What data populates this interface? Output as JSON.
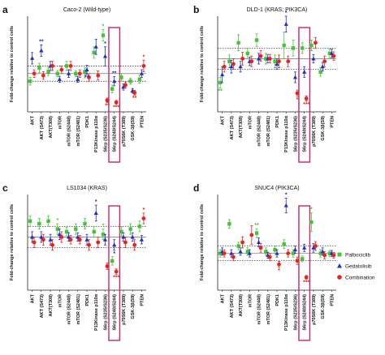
{
  "figure": {
    "ylabel": "Fold-change relative to control cells",
    "legend": [
      {
        "name": "Palbociclib",
        "color": "#49c13d",
        "shape": "square"
      },
      {
        "name": "Gedatolisib",
        "color": "#1f2fbf",
        "shape": "triangle"
      },
      {
        "name": "Combination",
        "color": "#e3241f",
        "shape": "circle"
      }
    ],
    "highlight_color": "#c8246c",
    "dotted_lines": [
      0.8,
      1.2
    ],
    "mid_line": 1.0
  },
  "chart_data": [
    {
      "type": "scatter",
      "panel_letter": "a",
      "title": "Caco-2 (Wild-type)",
      "ylabel": "Fold-change relative to control cells",
      "ylim": [
        0.0,
        2.5
      ],
      "categories": [
        "AKT",
        "AKT (S473)",
        "AKT(T308)",
        "mTOR",
        "mTOR (S2448)",
        "mTOR (S2481)",
        "PDK1",
        "P13Kinase p110α",
        "S6rp (S235/S236)",
        "S6rp (S240/S244)",
        "p70S6K (T389)",
        "GSK-3β(S9)",
        "PTEN"
      ],
      "highlight_index": 9,
      "series": [
        {
          "name": "Palbociclib",
          "values": [
            0.8,
            1.15,
            1.05,
            1.0,
            1.2,
            1.0,
            1.05,
            1.55,
            2.0,
            0.6,
            0.9,
            0.8,
            0.85
          ],
          "errors": [
            0.1,
            0.12,
            0.1,
            0.08,
            0.12,
            0.08,
            0.1,
            0.15,
            0.15,
            0.1,
            0.1,
            0.08,
            0.1
          ]
        },
        {
          "name": "Gedatolisib",
          "values": [
            1.4,
            1.6,
            1.2,
            0.85,
            1.0,
            0.85,
            1.1,
            1.7,
            1.45,
            0.8,
            0.65,
            0.55,
            1.0
          ],
          "errors": [
            0.15,
            0.15,
            0.12,
            0.08,
            0.1,
            0.08,
            0.12,
            0.2,
            0.25,
            0.12,
            0.08,
            0.06,
            0.1
          ]
        },
        {
          "name": "Combination",
          "values": [
            1.0,
            0.95,
            1.2,
            1.1,
            1.2,
            1.0,
            0.9,
            0.95,
            0.3,
            0.25,
            0.7,
            0.5,
            1.2
          ],
          "errors": [
            0.1,
            0.1,
            0.12,
            0.1,
            0.12,
            0.1,
            0.1,
            0.12,
            0.06,
            0.05,
            0.08,
            0.06,
            0.15
          ]
        }
      ],
      "annotations": [
        {
          "label": "**",
          "category_index": 1,
          "series": "Gedatolisib",
          "side": "above"
        },
        {
          "label": "*",
          "category_index": 6,
          "series": "Palbociclib",
          "side": "below"
        },
        {
          "label": "**",
          "category_index": 6,
          "series": "Gedatolisib",
          "side": "below"
        },
        {
          "label": "*",
          "category_index": 8,
          "series": "Palbociclib",
          "side": "above"
        },
        {
          "label": "*",
          "category_index": 8,
          "series": "Gedatolisib",
          "side": "above"
        },
        {
          "label": "**",
          "category_index": 8,
          "series": "Combination",
          "side": "below"
        },
        {
          "label": "**",
          "category_index": 9,
          "series": "Gedatolisib",
          "side": "above"
        },
        {
          "label": "***",
          "category_index": 9,
          "series": "Combination",
          "side": "below"
        },
        {
          "label": "**",
          "category_index": 11,
          "series": "Combination",
          "side": "below"
        },
        {
          "label": "*",
          "category_index": 12,
          "series": "Combination",
          "side": "above"
        }
      ]
    },
    {
      "type": "scatter",
      "panel_letter": "b",
      "title": "DLD-1 (KRAS; PIK3CA)",
      "ylabel": "Fold-change relative to control cells",
      "ylim": [
        0.0,
        1.8
      ],
      "categories": [
        "AKT",
        "AKT (S473)",
        "AKT(T308)",
        "mTOR",
        "mTOR (S2448)",
        "mTOR (S2481)",
        "PDK1",
        "P13Kinase p110α",
        "S6rp (S235/S236)",
        "S6rp (S240/S244)",
        "p70S6K (T389)",
        "GSK-3β(S9)",
        "PTEN"
      ],
      "highlight_index": 9,
      "series": [
        {
          "name": "Palbociclib",
          "values": [
            0.55,
            0.95,
            1.3,
            1.1,
            1.35,
            1.0,
            0.95,
            1.25,
            1.2,
            1.2,
            1.25,
            0.75,
            1.1
          ],
          "errors": [
            0.1,
            0.12,
            0.15,
            0.1,
            0.12,
            0.1,
            0.12,
            0.25,
            0.15,
            0.1,
            0.1,
            0.08,
            0.08
          ]
        },
        {
          "name": "Gedatolisib",
          "values": [
            0.7,
            0.85,
            0.85,
            0.95,
            1.0,
            1.0,
            0.9,
            1.65,
            0.65,
            0.75,
            1.0,
            0.85,
            1.1
          ],
          "errors": [
            0.15,
            0.12,
            0.1,
            0.08,
            0.1,
            0.08,
            0.1,
            0.15,
            0.1,
            0.1,
            0.08,
            0.08,
            0.08
          ]
        },
        {
          "name": "Combination",
          "values": [
            0.85,
            0.9,
            1.0,
            0.95,
            1.05,
            1.0,
            0.95,
            0.95,
            0.35,
            0.25,
            1.3,
            0.95,
            1.05
          ],
          "errors": [
            0.1,
            0.1,
            0.12,
            0.1,
            0.1,
            0.08,
            0.12,
            0.1,
            0.06,
            0.05,
            0.1,
            0.1,
            0.08
          ]
        }
      ],
      "annotations": [
        {
          "label": "**",
          "category_index": 0,
          "series": "Palbociclib",
          "side": "below"
        },
        {
          "label": "*",
          "category_index": 7,
          "series": "Gedatolisib",
          "side": "above"
        },
        {
          "label": "*",
          "category_index": 8,
          "series": "Combination",
          "side": "below"
        },
        {
          "label": "***",
          "category_index": 9,
          "series": "Combination",
          "side": "below"
        }
      ]
    },
    {
      "type": "scatter",
      "panel_letter": "c",
      "title": "LS1034 (KRAS)",
      "ylabel": "Fold-change relative to control cells",
      "ylim": [
        0.0,
        1.8
      ],
      "categories": [
        "AKT",
        "AKT (S473)",
        "AKT(T308)",
        "mTOR",
        "mTOR (S2448)",
        "mTOR (S2481)",
        "PDK1",
        "P13Kinase p110α",
        "S6rp (S235/S236)",
        "S6rp (S240/S244)",
        "p70S6K (T389)",
        "GSK-3β(S9)",
        "PTEN"
      ],
      "highlight_index": 9,
      "series": [
        {
          "name": "Palbociclib",
          "values": [
            1.3,
            1.25,
            1.3,
            1.15,
            1.1,
            1.15,
            1.25,
            1.1,
            1.05,
            0.55,
            1.1,
            1.15,
            1.2
          ],
          "errors": [
            0.1,
            0.1,
            0.1,
            0.1,
            0.08,
            0.1,
            0.1,
            0.1,
            0.1,
            0.08,
            0.1,
            0.1,
            0.1
          ]
        },
        {
          "name": "Gedatolisib",
          "values": [
            1.0,
            1.0,
            0.95,
            1.05,
            1.0,
            1.0,
            0.95,
            1.45,
            0.95,
            0.85,
            1.0,
            1.0,
            0.95
          ],
          "errors": [
            0.1,
            0.1,
            0.1,
            0.1,
            0.08,
            0.08,
            0.1,
            0.15,
            0.1,
            0.1,
            0.08,
            0.08,
            0.08
          ]
        },
        {
          "name": "Combination",
          "values": [
            0.9,
            0.95,
            0.85,
            1.0,
            0.95,
            0.95,
            0.85,
            0.9,
            0.45,
            0.35,
            0.9,
            0.85,
            1.35
          ],
          "errors": [
            0.1,
            0.1,
            0.1,
            0.1,
            0.08,
            0.08,
            0.1,
            0.1,
            0.06,
            0.05,
            0.1,
            0.1,
            0.1
          ]
        }
      ],
      "annotations": [
        {
          "label": "*",
          "category_index": 3,
          "series": "Palbociclib",
          "side": "above"
        },
        {
          "label": "*",
          "category_index": 7,
          "series": "Gedatolisib",
          "side": "above"
        },
        {
          "label": "*",
          "category_index": 8,
          "series": "Palbociclib",
          "side": "above"
        },
        {
          "label": "*",
          "category_index": 9,
          "series": "Gedatolisib",
          "side": "below"
        },
        {
          "label": "***",
          "category_index": 9,
          "series": "Combination",
          "side": "below"
        },
        {
          "label": "*",
          "category_index": 12,
          "series": "Combination",
          "side": "above"
        }
      ]
    },
    {
      "type": "scatter",
      "panel_letter": "d",
      "title": "SNUC4 (PIK3CA)",
      "ylabel": "Fold-change relative to control cells",
      "ylim": [
        0.0,
        2.6
      ],
      "categories": [
        "AKT",
        "AKT (S473)",
        "AKT(T308)",
        "mTOR",
        "mTOR (S2448)",
        "mTOR (S2481)",
        "PDK1",
        "P13Kinase p110α",
        "S6rp (S235/S236)",
        "S6rp (S240/S244)",
        "p70S6K (T389)",
        "GSK-3β(S9)",
        "PTEN"
      ],
      "highlight_index": 9,
      "series": [
        {
          "name": "Palbociclib",
          "values": [
            1.0,
            1.8,
            1.2,
            1.05,
            1.55,
            1.05,
            1.1,
            1.25,
            1.0,
            0.85,
            1.85,
            1.0,
            1.0
          ],
          "errors": [
            0.1,
            0.12,
            0.1,
            0.1,
            0.12,
            0.1,
            0.1,
            0.12,
            0.1,
            0.08,
            0.25,
            0.1,
            0.08
          ]
        },
        {
          "name": "Gedatolisib",
          "values": [
            1.05,
            1.0,
            1.05,
            1.0,
            1.3,
            0.95,
            1.0,
            2.3,
            1.1,
            1.15,
            1.15,
            1.05,
            1.0
          ],
          "errors": [
            0.1,
            0.1,
            0.1,
            0.1,
            0.12,
            0.08,
            0.1,
            0.2,
            0.1,
            0.1,
            0.12,
            0.1,
            0.08
          ]
        },
        {
          "name": "Combination",
          "values": [
            1.0,
            0.9,
            1.3,
            1.5,
            1.15,
            0.9,
            0.7,
            1.0,
            0.8,
            0.35,
            1.2,
            0.95,
            0.95
          ],
          "errors": [
            0.1,
            0.1,
            0.15,
            0.25,
            0.12,
            0.1,
            0.08,
            0.1,
            0.1,
            0.05,
            0.12,
            0.1,
            0.08
          ]
        }
      ],
      "annotations": [
        {
          "label": "**",
          "category_index": 4,
          "series": "Palbociclib",
          "side": "above"
        },
        {
          "label": "*",
          "category_index": 7,
          "series": "Gedatolisib",
          "side": "above"
        },
        {
          "label": "*",
          "category_index": 6,
          "series": "Combination",
          "side": "below"
        },
        {
          "label": "*",
          "category_index": 10,
          "series": "Palbociclib",
          "side": "above"
        },
        {
          "label": "***",
          "category_index": 9,
          "series": "Combination",
          "side": "below"
        }
      ]
    }
  ]
}
